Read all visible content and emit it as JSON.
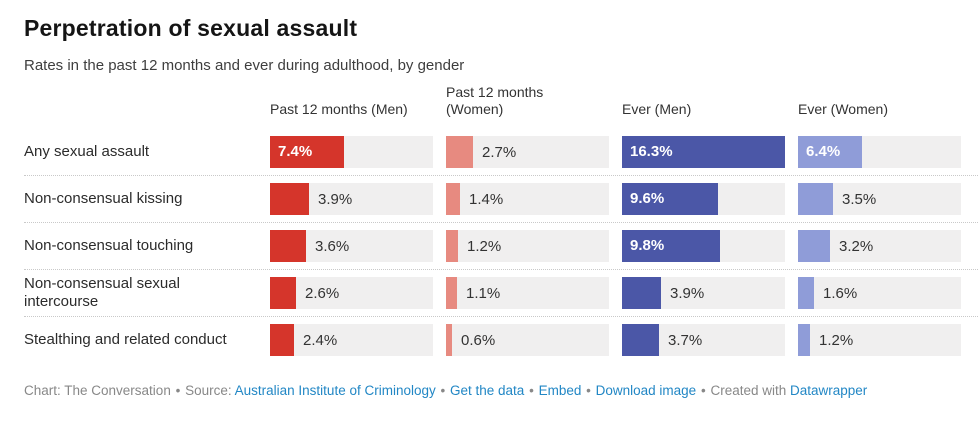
{
  "header": {
    "title": "Perpetration of sexual assault",
    "subtitle": "Rates in the past 12 months and ever during adulthood, by gender"
  },
  "chart_data": {
    "type": "bar",
    "orientation": "horizontal",
    "value_suffix": "%",
    "axis_max": 16.3,
    "track_color": "#f0efef",
    "categories": [
      "Any sexual assault",
      "Non-consensual kissing",
      "Non-consensual touching",
      "Non-consensual sexual intercourse",
      "Stealthing and related conduct"
    ],
    "series": [
      {
        "name": "Past 12 months (Men)",
        "color": "#d5352b",
        "values": [
          7.4,
          3.9,
          3.6,
          2.6,
          2.4
        ]
      },
      {
        "name": "Past 12 months (Women)",
        "color": "#e78a80",
        "values": [
          2.7,
          1.4,
          1.2,
          1.1,
          0.6
        ]
      },
      {
        "name": "Ever (Men)",
        "color": "#4b57a7",
        "values": [
          16.3,
          9.6,
          9.8,
          3.9,
          3.7
        ]
      },
      {
        "name": "Ever (Women)",
        "color": "#8f9cd8",
        "values": [
          6.4,
          3.5,
          3.2,
          1.6,
          1.2
        ]
      }
    ]
  },
  "footer": {
    "credit": "Chart: The Conversation",
    "sep": "•",
    "source_label": "Source:",
    "source_link": "Australian Institute of Criminology",
    "links": [
      "Get the data",
      "Embed",
      "Download image"
    ],
    "created_with": "Created with",
    "created_with_link": "Datawrapper",
    "link_color": "#2287c5"
  }
}
